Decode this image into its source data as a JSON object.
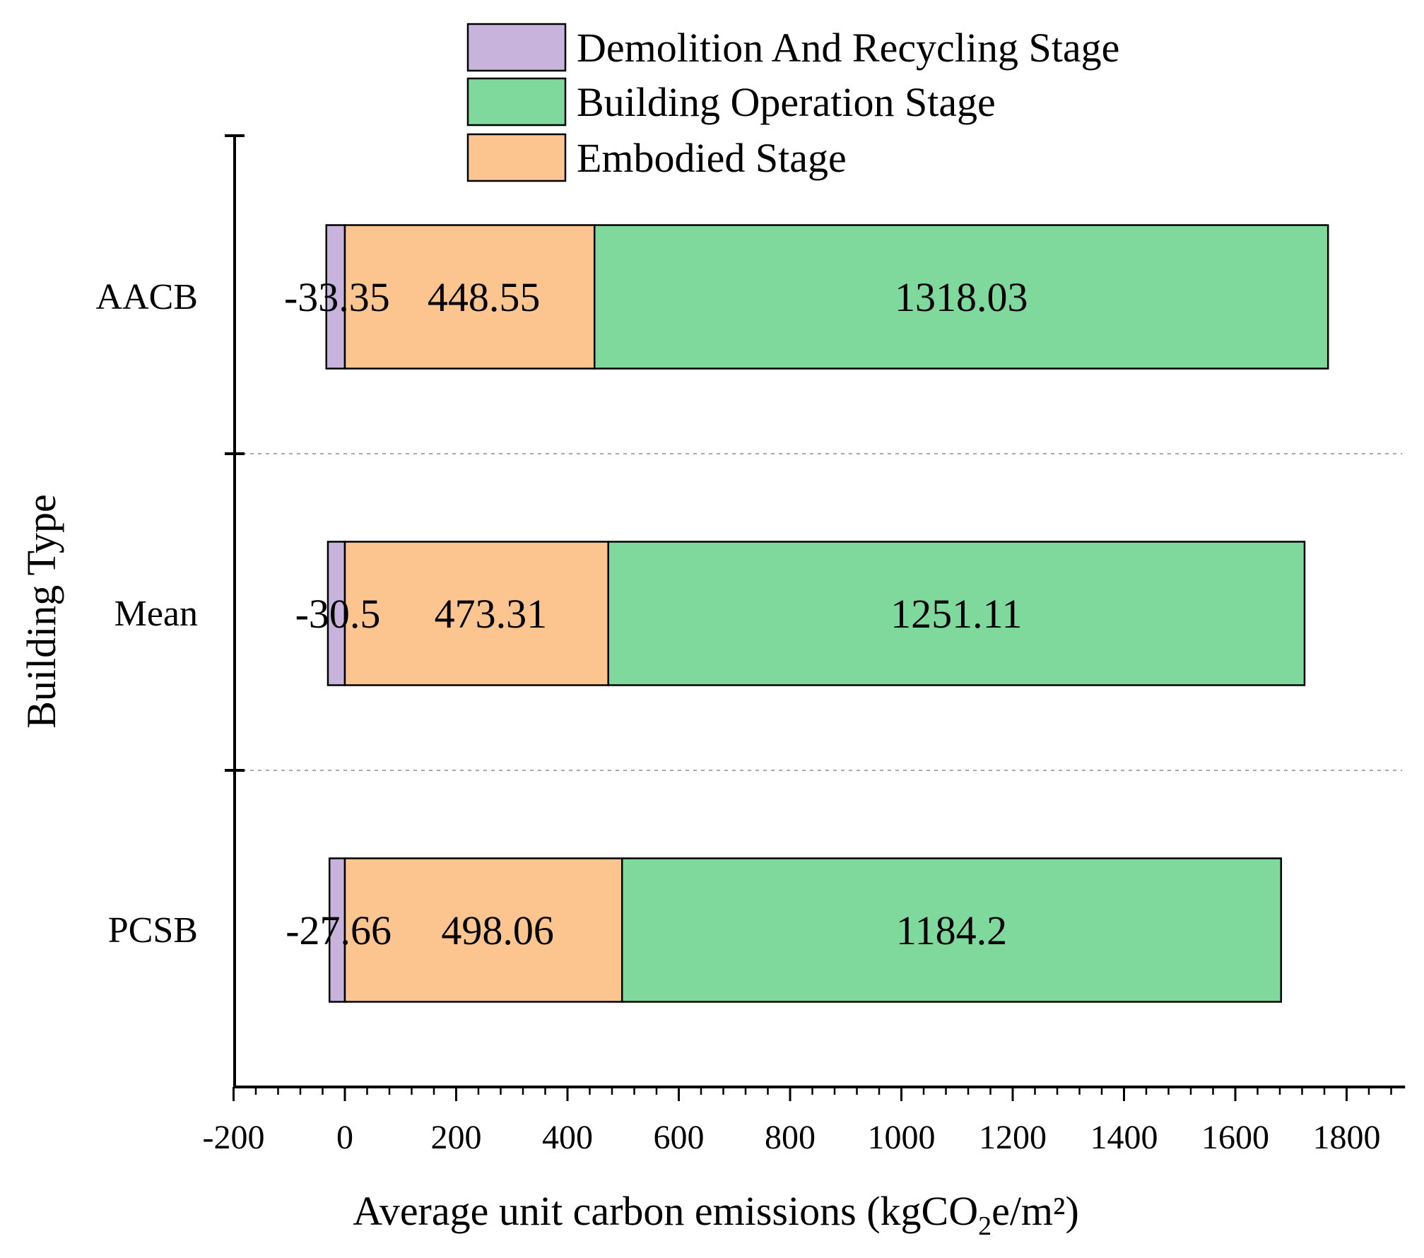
{
  "chart_data": {
    "type": "bar",
    "orientation": "horizontal",
    "stacked": true,
    "categories": [
      "AACB",
      "Mean",
      "PCSB"
    ],
    "series": [
      {
        "name": "Demolition And Recycling Stage",
        "values": [
          -33.35,
          -30.5,
          -27.66
        ],
        "color": "#c8b3dc"
      },
      {
        "name": "Embodied Stage",
        "values": [
          448.55,
          473.31,
          498.06
        ],
        "color": "#fcc48e"
      },
      {
        "name": "Building Operation Stage",
        "values": [
          1318.03,
          1251.11,
          1184.2
        ],
        "color": "#7fd89c"
      }
    ],
    "data_labels": [
      [
        "-33.35",
        "448.55",
        "1318.03"
      ],
      [
        "-30.5",
        "473.31",
        "1251.11"
      ],
      [
        "-27.66",
        "498.06",
        "1184.2"
      ]
    ],
    "legend": {
      "position": "top-center",
      "items": [
        {
          "name": "Demolition And Recycling Stage",
          "color": "#c8b3dc"
        },
        {
          "name": "Building Operation Stage",
          "color": "#7fd89c"
        },
        {
          "name": "Embodied Stage",
          "color": "#fcc48e"
        }
      ]
    },
    "xlabel": {
      "main": "Average unit carbon emissions (kgCO",
      "sub": "2",
      "tail": "e/m²)"
    },
    "ylabel": "Building Type",
    "xlim": [
      -200,
      1900
    ],
    "xticks": [
      "-200",
      "0",
      "200",
      "400",
      "600",
      "800",
      "1000",
      "1200",
      "1400",
      "1600",
      "1800"
    ],
    "grid": "horizontal dotted separators between categories"
  }
}
